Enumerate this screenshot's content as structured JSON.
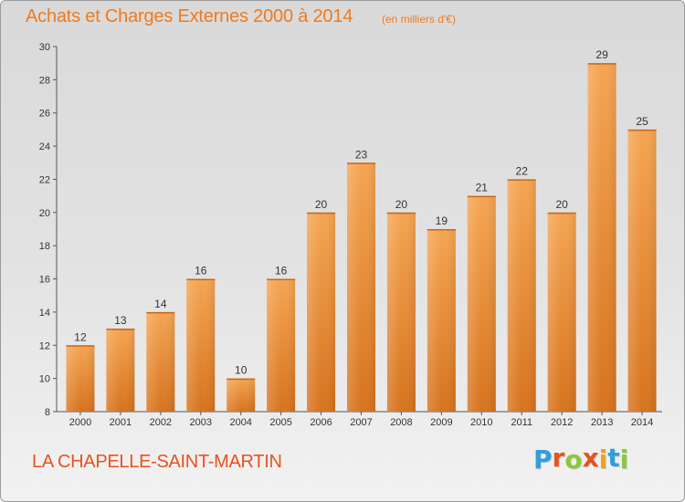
{
  "header": {
    "title": "Achats et Charges Externes 2000 à 2014",
    "subtitle": "(en milliers d'€)"
  },
  "footer": {
    "city": "LA CHAPELLE-SAINT-MARTIN",
    "logo_letters": [
      "P",
      "r",
      "o",
      "x",
      "i",
      "t",
      "i"
    ],
    "logo_colors": [
      "#2f9fd8",
      "#e8521e",
      "#8cc63f",
      "#e8521e",
      "#f0a020",
      "#2f9fd8",
      "#8cc63f"
    ]
  },
  "colors": {
    "title": "#f07a1d",
    "bar_top": "#f5a552",
    "bar_bottom": "#d7731e"
  },
  "chart_data": {
    "type": "bar",
    "title": "Achats et Charges Externes 2000 à 2014",
    "subtitle": "(en milliers d'€)",
    "xlabel": "",
    "ylabel": "",
    "categories": [
      "2000",
      "2001",
      "2002",
      "2003",
      "2004",
      "2005",
      "2006",
      "2007",
      "2008",
      "2009",
      "2010",
      "2011",
      "2012",
      "2013",
      "2014"
    ],
    "values": [
      12,
      13,
      14,
      16,
      10,
      16,
      20,
      23,
      20,
      19,
      21,
      22,
      20,
      29,
      25
    ],
    "data_labels": [
      "12",
      "13",
      "14",
      "16",
      "10",
      "16",
      "20",
      "23",
      "20",
      "19",
      "21",
      "22",
      "20",
      "29",
      "25"
    ],
    "ylim": [
      8,
      30
    ],
    "yticks": [
      8,
      10,
      12,
      14,
      16,
      18,
      20,
      22,
      24,
      26,
      28,
      30
    ],
    "ytick_labels": [
      "8",
      "10",
      "12",
      "14",
      "16",
      "18",
      "20",
      "22",
      "24",
      "26",
      "28",
      "30"
    ],
    "grid": false,
    "legend": "none"
  }
}
